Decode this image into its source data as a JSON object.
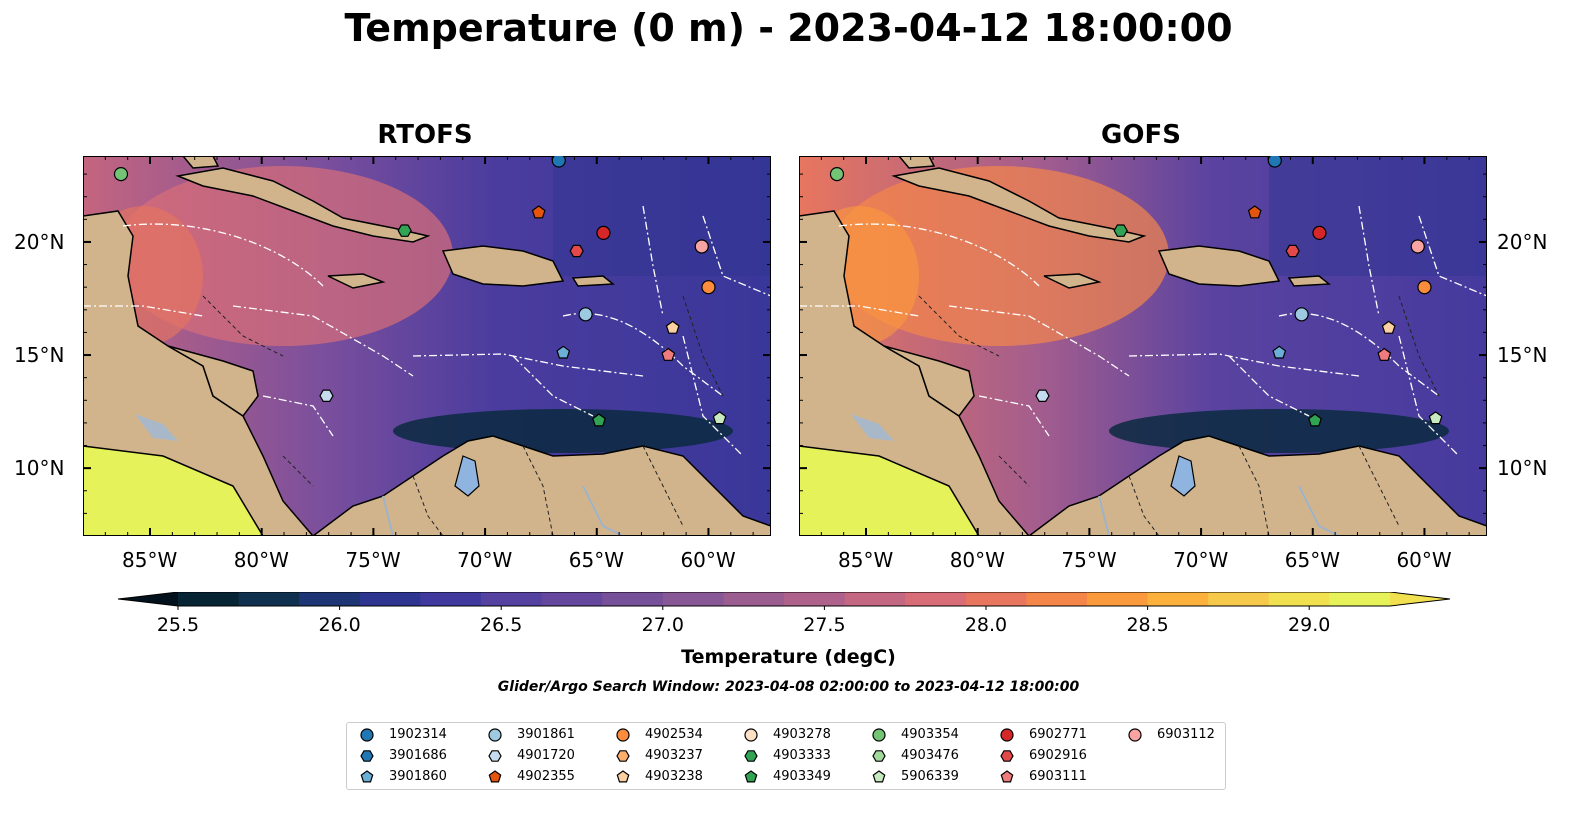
{
  "title": "Temperature (0 m) - 2023-04-12 18:00:00",
  "panels": [
    {
      "title": "RTOFS"
    },
    {
      "title": "GOFS"
    }
  ],
  "axes": {
    "lon_ticks": [
      "85°W",
      "80°W",
      "75°W",
      "70°W",
      "65°W",
      "60°W"
    ],
    "lat_ticks": [
      "20°N",
      "15°N",
      "10°N"
    ],
    "lon_range": [
      -88,
      -57.2
    ],
    "lat_range": [
      7,
      23.8
    ]
  },
  "colorbar": {
    "label": "Temperature (degC)",
    "ticks": [
      "25.5",
      "26.0",
      "26.5",
      "27.0",
      "27.5",
      "28.0",
      "28.5",
      "29.0"
    ],
    "colors": [
      "#062433",
      "#10304f",
      "#1d3574",
      "#2e3591",
      "#403a9f",
      "#5541a0",
      "#66479e",
      "#77509a",
      "#885795",
      "#9b5c90",
      "#ae618b",
      "#c46783",
      "#d86d78",
      "#e8765e",
      "#f5864a",
      "#fb9a3d",
      "#fbb13c",
      "#f6c94a",
      "#f1e150",
      "#e6f25a"
    ]
  },
  "search_window": "Glider/Argo Search Window: 2023-04-08 02:00:00 to 2023-04-12 18:00:00",
  "legend": [
    {
      "id": "1902314",
      "marker": "circle",
      "color": "#1f77b4"
    },
    {
      "id": "3901686",
      "marker": "hexagon",
      "color": "#1f77b4"
    },
    {
      "id": "3901860",
      "marker": "pentagon",
      "color": "#6baed6"
    },
    {
      "id": "3901861",
      "marker": "circle",
      "color": "#9ecae1"
    },
    {
      "id": "4901720",
      "marker": "hexagon",
      "color": "#c6dbef"
    },
    {
      "id": "4902355",
      "marker": "pentagon",
      "color": "#e6550d"
    },
    {
      "id": "4902534",
      "marker": "circle",
      "color": "#fd8d3c"
    },
    {
      "id": "4903237",
      "marker": "hexagon",
      "color": "#fdae6b"
    },
    {
      "id": "4903238",
      "marker": "pentagon",
      "color": "#fdd0a2"
    },
    {
      "id": "4903278",
      "marker": "circle",
      "color": "#fde0c5"
    },
    {
      "id": "4903333",
      "marker": "hexagon",
      "color": "#31a354"
    },
    {
      "id": "4903349",
      "marker": "pentagon",
      "color": "#31a354"
    },
    {
      "id": "4903354",
      "marker": "circle",
      "color": "#74c476"
    },
    {
      "id": "4903476",
      "marker": "hexagon",
      "color": "#a1d99b"
    },
    {
      "id": "5906339",
      "marker": "pentagon",
      "color": "#c7e9c0"
    },
    {
      "id": "6902771",
      "marker": "circle",
      "color": "#d62728"
    },
    {
      "id": "6902916",
      "marker": "hexagon",
      "color": "#e3484a"
    },
    {
      "id": "6903111",
      "marker": "pentagon",
      "color": "#f07b7d"
    },
    {
      "id": "6903112",
      "marker": "circle",
      "color": "#f9a3a3"
    }
  ],
  "floats": [
    {
      "id": "4903354",
      "lon": -86.3,
      "lat": 23.0,
      "marker": "circle",
      "color": "#74c476"
    },
    {
      "id": "1902314",
      "lon": -66.7,
      "lat": 23.6,
      "marker": "circle",
      "color": "#1f77b4"
    },
    {
      "id": "4902355",
      "lon": -67.6,
      "lat": 21.3,
      "marker": "pentagon",
      "color": "#e6550d"
    },
    {
      "id": "4903333",
      "lon": -73.6,
      "lat": 20.5,
      "marker": "hexagon",
      "color": "#31a354"
    },
    {
      "id": "6902771",
      "lon": -64.7,
      "lat": 20.4,
      "marker": "circle",
      "color": "#d62728"
    },
    {
      "id": "6902916",
      "lon": -65.9,
      "lat": 19.6,
      "marker": "hexagon",
      "color": "#e3484a"
    },
    {
      "id": "6903112",
      "lon": -60.3,
      "lat": 19.8,
      "marker": "circle",
      "color": "#f9a3a3"
    },
    {
      "id": "4902534",
      "lon": -60.0,
      "lat": 18.0,
      "marker": "circle",
      "color": "#fd8d3c"
    },
    {
      "id": "3901861",
      "lon": -65.5,
      "lat": 16.8,
      "marker": "circle",
      "color": "#9ecae1"
    },
    {
      "id": "4903238",
      "lon": -61.6,
      "lat": 16.2,
      "marker": "pentagon",
      "color": "#fdd0a2"
    },
    {
      "id": "3901860",
      "lon": -66.5,
      "lat": 15.1,
      "marker": "pentagon",
      "color": "#6baed6"
    },
    {
      "id": "6903111",
      "lon": -61.8,
      "lat": 15.0,
      "marker": "pentagon",
      "color": "#f07b7d"
    },
    {
      "id": "4901720",
      "lon": -77.1,
      "lat": 13.2,
      "marker": "hexagon",
      "color": "#c6dbef"
    },
    {
      "id": "4903349",
      "lon": -64.9,
      "lat": 12.1,
      "marker": "pentagon",
      "color": "#31a354"
    },
    {
      "id": "5906339",
      "lon": -59.5,
      "lat": 12.2,
      "marker": "pentagon",
      "color": "#c7e9c0"
    }
  ]
}
